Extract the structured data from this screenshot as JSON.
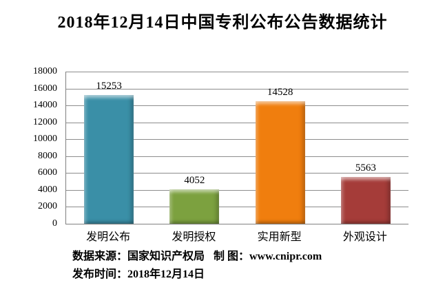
{
  "title": "2018年12月14日中国专利公布公告数据统计",
  "footer": {
    "source": "数据来源：国家知识产权局",
    "credit": "制 图：www.cnipr.com",
    "publish_date": "发布时间：2018年12月14日"
  },
  "chart_data": {
    "type": "bar",
    "title": "2018年12月14日中国专利公布公告数据统计",
    "categories": [
      "发明公布",
      "发明授权",
      "实用新型",
      "外观设计"
    ],
    "values": [
      15253,
      4052,
      14528,
      5563
    ],
    "colors": [
      "#3A8FA7",
      "#7CA13F",
      "#F07E0E",
      "#A53C39"
    ],
    "data_labels": [
      15253,
      4052,
      14528,
      5563
    ],
    "xlabel": "",
    "ylabel": "",
    "ylim": [
      0,
      18000
    ],
    "ytick_step": 2000,
    "ytick_labels": [
      "0",
      "2000",
      "4000",
      "6000",
      "8000",
      "10000",
      "12000",
      "14000",
      "16000",
      "18000"
    ],
    "grid": true,
    "legend_position": "none",
    "axis_color": "#7f7f7f",
    "gridline_color": "#8c8c8c"
  }
}
